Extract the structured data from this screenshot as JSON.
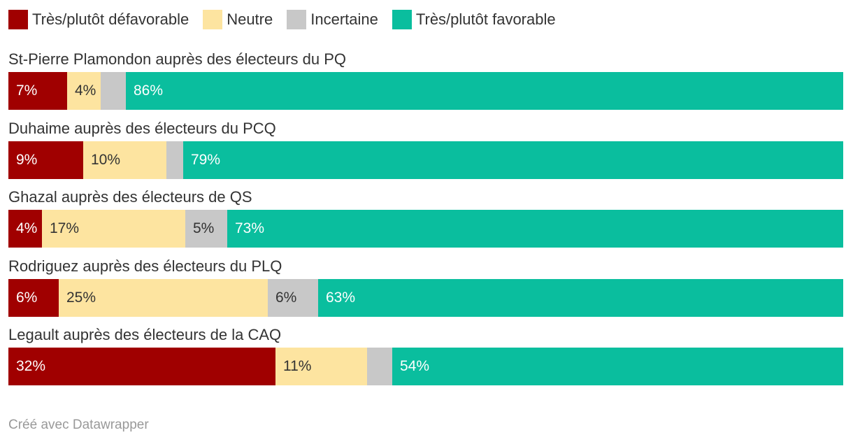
{
  "chart_data": {
    "type": "bar",
    "orientation": "horizontal",
    "stacked": true,
    "percent": true,
    "legend_position": "top-left",
    "categories": [
      "St-Pierre Plamondon auprès des électeurs du PQ",
      "Duhaime auprès des électeurs du PCQ",
      "Ghazal auprès des électeurs de QS",
      "Rodriguez auprès des électeurs du PLQ",
      "Legault auprès des électeurs de la CAQ"
    ],
    "series": [
      {
        "name": "Très/plutôt défavorable",
        "color": "#a00000",
        "label_color": "#ffffff",
        "values": [
          7,
          9,
          4,
          6,
          32
        ],
        "labels": [
          "7%",
          "9%",
          "4%",
          "6%",
          "32%"
        ]
      },
      {
        "name": "Neutre",
        "color": "#fde4a0",
        "label_color": "#333333",
        "values": [
          4,
          10,
          17,
          25,
          11
        ],
        "labels": [
          "4%",
          "10%",
          "17%",
          "25%",
          "11%"
        ]
      },
      {
        "name": "Incertaine",
        "color": "#c8c8c8",
        "label_color": "#333333",
        "values": [
          3,
          2,
          5,
          6,
          3
        ],
        "labels": [
          "",
          "",
          "5%",
          "6%",
          ""
        ]
      },
      {
        "name": "Très/plutôt favorable",
        "color": "#0abe9e",
        "label_color": "#ffffff",
        "values": [
          86,
          79,
          73,
          63,
          54
        ],
        "labels": [
          "86%",
          "79%",
          "73%",
          "63%",
          "54%"
        ]
      }
    ],
    "xlim": [
      0,
      100
    ],
    "title": "",
    "xlabel": "",
    "ylabel": ""
  },
  "footer": {
    "credit": "Créé avec Datawrapper"
  }
}
